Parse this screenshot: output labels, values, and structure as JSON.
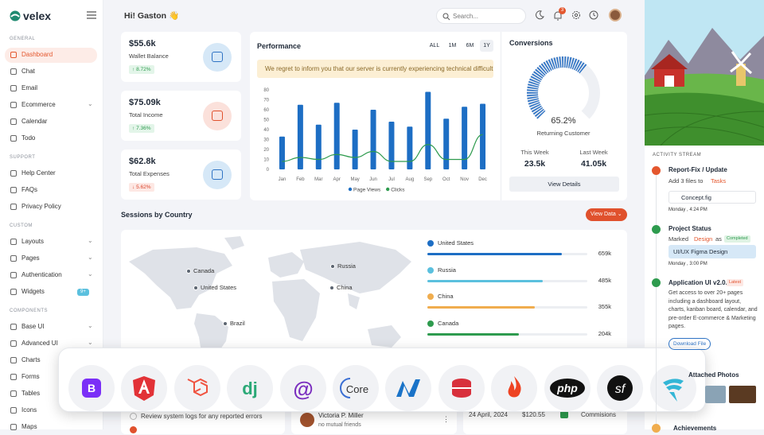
{
  "brand": "velex",
  "sidebar": [
    {
      "title": "GENERAL",
      "items": [
        "Dashboard",
        "Chat",
        "Email",
        "Ecommerce",
        "Calendar",
        "Todo"
      ]
    },
    {
      "title": "SUPPORT",
      "items": [
        "Help Center",
        "FAQs",
        "Privacy Policy"
      ]
    },
    {
      "title": "CUSTOM",
      "items": [
        "Layouts",
        "Pages",
        "Authentication",
        "Widgets"
      ]
    },
    {
      "title": "COMPONENTS",
      "items": [
        "Base UI",
        "Advanced UI",
        "Charts",
        "Forms",
        "Tables",
        "Icons",
        "Maps"
      ]
    }
  ],
  "widgets_badge": "9+",
  "greeting": "Hi! Gaston 👋",
  "search_placeholder": "Search...",
  "notification_count": 3,
  "stats": [
    {
      "value": "$55.6k",
      "label": "Wallet Balance",
      "change": "8.72%"
    },
    {
      "value": "$75.09k",
      "label": "Total Income",
      "change": "7.36%"
    },
    {
      "value": "$62.8k",
      "label": "Total Expenses",
      "change": "5.62%"
    }
  ],
  "chart_data": {
    "type": "bar",
    "title": "Performance",
    "ranges": [
      "ALL",
      "1M",
      "6M",
      "1Y"
    ],
    "alert": "We regret to inform you that our server is currently experiencing technical difficulti...",
    "categories": [
      "Jan",
      "Feb",
      "Mar",
      "Apr",
      "May",
      "Jun",
      "Jul",
      "Aug",
      "Sep",
      "Oct",
      "Nov",
      "Dec"
    ],
    "series": [
      {
        "name": "Page Views",
        "type": "bar",
        "color": "#1d6ec4",
        "values": [
          33,
          65,
          45,
          67,
          40,
          60,
          48,
          43,
          78,
          51,
          63,
          66
        ]
      },
      {
        "name": "Clicks",
        "type": "line",
        "color": "#2e9b4e",
        "values": [
          8,
          12,
          10,
          15,
          12,
          18,
          8,
          8,
          25,
          10,
          10,
          35
        ]
      }
    ],
    "ylim": [
      0,
      80
    ],
    "yticks": [
      0,
      10,
      20,
      30,
      40,
      50,
      60,
      70,
      80
    ]
  },
  "conversions": {
    "title": "Conversions",
    "value": 65.2,
    "value_label": "65.2%",
    "label": "Returning Customer",
    "this_week_label": "This Week",
    "this_week": "23.5k",
    "last_week_label": "Last Week",
    "last_week": "41.05k",
    "button": "View Details"
  },
  "sessions": {
    "title": "Sessions by Country",
    "button": "View Data",
    "map_labels": [
      "Canada",
      "United States",
      "Russia",
      "China",
      "Brazil"
    ],
    "countries": [
      {
        "name": "United States",
        "value": "659k",
        "share": 84,
        "color": "#1d6ec4"
      },
      {
        "name": "Russia",
        "value": "485k",
        "share": 72,
        "color": "#5bc0de"
      },
      {
        "name": "China",
        "value": "355k",
        "share": 67,
        "color": "#f0ad4e"
      },
      {
        "name": "Canada",
        "value": "204k",
        "share": 57,
        "color": "#2e9b4e"
      }
    ]
  },
  "tech_glyphs": {
    "bootstrap": "B",
    "django": "dj",
    "blazor": "@",
    "core": "Core",
    "php": "php",
    "symfony": "sf"
  },
  "bottom": {
    "task": "Review system logs for any reported errors",
    "friend_name": "Victoria P. Miller",
    "friend_note": "no mutual friends",
    "date": "24 April, 2024",
    "amount": "$120.55",
    "type": "Commisions"
  },
  "activity": {
    "title": "ACTIVITY STREAM",
    "items": [
      {
        "title": "Report-Fix / Update",
        "text": "Add 3 files to",
        "link": "Tasks",
        "file": "Concept.fig",
        "time": "Monday , 4:24 PM"
      },
      {
        "title": "Project Status",
        "text": "Marked",
        "link": "Design",
        "text2": "as",
        "badge": "Completed",
        "file": "UI/UX Figma Design",
        "time": "Monday , 3:00 PM"
      },
      {
        "title": "Application UI v2.0.0",
        "badge": "Latest",
        "text": "Get access to over 20+ pages including a dashboard layout, charts, kanban board, calendar, and pre-order E-commerce & Marketing pages.",
        "button": "Download File"
      },
      {
        "title": "Attached Photos"
      },
      {
        "title": "Achievements"
      }
    ]
  }
}
